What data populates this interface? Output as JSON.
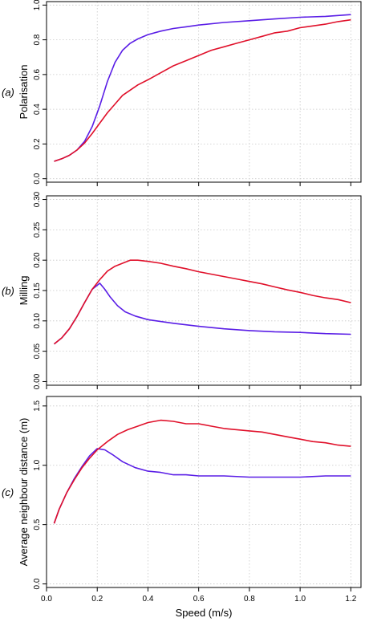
{
  "colors": {
    "red": "#e0102a",
    "blue": "#5a1ee6",
    "grid": "#c8c8c8",
    "axis": "#000000"
  },
  "xaxis": {
    "label": "Speed (m/s)",
    "ticks": [
      "0.0",
      "0.2",
      "0.4",
      "0.6",
      "0.8",
      "1.0",
      "1.2"
    ]
  },
  "chart_data": [
    {
      "type": "line",
      "panel_label": "(a)",
      "ylabel": "Polarisation",
      "xlim": [
        0,
        1.24
      ],
      "ylim": [
        -0.02,
        1.02
      ],
      "x_ticks": [
        0,
        0.2,
        0.4,
        0.6,
        0.8,
        1.0,
        1.2
      ],
      "y_ticks": [
        0.0,
        0.2,
        0.4,
        0.6,
        0.8,
        1.0
      ],
      "y_tick_labels": [
        "0.0",
        "0.2",
        "0.4",
        "0.6",
        "0.8",
        "1.0"
      ],
      "grid": true,
      "series": [
        {
          "color": "#5a1ee6",
          "x": [
            0.03,
            0.06,
            0.09,
            0.12,
            0.15,
            0.18,
            0.21,
            0.24,
            0.27,
            0.3,
            0.33,
            0.36,
            0.4,
            0.45,
            0.5,
            0.55,
            0.6,
            0.7,
            0.8,
            0.9,
            1.0,
            1.1,
            1.2
          ],
          "y": [
            0.1,
            0.115,
            0.135,
            0.165,
            0.215,
            0.3,
            0.42,
            0.56,
            0.67,
            0.74,
            0.78,
            0.805,
            0.83,
            0.85,
            0.865,
            0.875,
            0.885,
            0.9,
            0.91,
            0.92,
            0.93,
            0.935,
            0.945
          ]
        },
        {
          "color": "#e0102a",
          "x": [
            0.03,
            0.06,
            0.09,
            0.12,
            0.15,
            0.18,
            0.21,
            0.24,
            0.27,
            0.3,
            0.33,
            0.36,
            0.4,
            0.45,
            0.5,
            0.55,
            0.6,
            0.65,
            0.7,
            0.75,
            0.8,
            0.85,
            0.9,
            0.95,
            1.0,
            1.05,
            1.1,
            1.15,
            1.2
          ],
          "y": [
            0.1,
            0.115,
            0.135,
            0.165,
            0.205,
            0.26,
            0.32,
            0.38,
            0.43,
            0.48,
            0.51,
            0.54,
            0.57,
            0.61,
            0.65,
            0.68,
            0.71,
            0.74,
            0.76,
            0.78,
            0.8,
            0.82,
            0.84,
            0.85,
            0.87,
            0.88,
            0.89,
            0.905,
            0.915
          ]
        }
      ]
    },
    {
      "type": "line",
      "panel_label": "(b)",
      "ylabel": "Milling",
      "xlim": [
        0,
        1.24
      ],
      "ylim": [
        -0.006,
        0.306
      ],
      "x_ticks": [
        0,
        0.2,
        0.4,
        0.6,
        0.8,
        1.0,
        1.2
      ],
      "y_ticks": [
        0.0,
        0.05,
        0.1,
        0.15,
        0.2,
        0.25,
        0.3
      ],
      "y_tick_labels": [
        "0.00",
        "0.05",
        "0.10",
        "0.15",
        "0.20",
        "0.25",
        "0.30"
      ],
      "grid": true,
      "series": [
        {
          "color": "#5a1ee6",
          "x": [
            0.03,
            0.06,
            0.09,
            0.12,
            0.15,
            0.18,
            0.21,
            0.23,
            0.25,
            0.28,
            0.31,
            0.35,
            0.4,
            0.45,
            0.5,
            0.6,
            0.7,
            0.8,
            0.9,
            1.0,
            1.1,
            1.2
          ],
          "y": [
            0.062,
            0.072,
            0.087,
            0.107,
            0.13,
            0.152,
            0.162,
            0.152,
            0.14,
            0.125,
            0.115,
            0.108,
            0.102,
            0.099,
            0.096,
            0.091,
            0.087,
            0.084,
            0.082,
            0.081,
            0.079,
            0.078
          ]
        },
        {
          "color": "#e0102a",
          "x": [
            0.03,
            0.06,
            0.09,
            0.12,
            0.15,
            0.18,
            0.21,
            0.24,
            0.27,
            0.3,
            0.33,
            0.36,
            0.4,
            0.45,
            0.5,
            0.55,
            0.6,
            0.65,
            0.7,
            0.75,
            0.8,
            0.85,
            0.9,
            0.95,
            1.0,
            1.05,
            1.1,
            1.15,
            1.2
          ],
          "y": [
            0.062,
            0.072,
            0.087,
            0.107,
            0.13,
            0.152,
            0.168,
            0.182,
            0.19,
            0.195,
            0.2,
            0.2,
            0.198,
            0.195,
            0.19,
            0.186,
            0.181,
            0.177,
            0.173,
            0.169,
            0.165,
            0.161,
            0.156,
            0.151,
            0.147,
            0.142,
            0.138,
            0.135,
            0.13
          ]
        }
      ]
    },
    {
      "type": "line",
      "panel_label": "(c)",
      "ylabel": "Average neighbour distance (m)",
      "xlim": [
        0,
        1.24
      ],
      "ylim": [
        -0.03,
        1.58
      ],
      "x_ticks": [
        0,
        0.2,
        0.4,
        0.6,
        0.8,
        1.0,
        1.2
      ],
      "y_ticks": [
        0.0,
        0.5,
        1.0,
        1.5
      ],
      "y_tick_labels": [
        "0.0",
        "0.5",
        "1.0",
        "1.5"
      ],
      "grid": true,
      "series": [
        {
          "color": "#5a1ee6",
          "x": [
            0.03,
            0.05,
            0.08,
            0.11,
            0.14,
            0.17,
            0.2,
            0.23,
            0.26,
            0.3,
            0.35,
            0.4,
            0.45,
            0.5,
            0.55,
            0.6,
            0.7,
            0.8,
            0.9,
            1.0,
            1.1,
            1.2
          ],
          "y": [
            0.51,
            0.63,
            0.77,
            0.89,
            0.99,
            1.08,
            1.14,
            1.13,
            1.09,
            1.03,
            0.98,
            0.95,
            0.94,
            0.92,
            0.92,
            0.91,
            0.91,
            0.9,
            0.9,
            0.9,
            0.91,
            0.91
          ]
        },
        {
          "color": "#e0102a",
          "x": [
            0.03,
            0.05,
            0.08,
            0.11,
            0.14,
            0.17,
            0.2,
            0.24,
            0.28,
            0.32,
            0.36,
            0.4,
            0.45,
            0.5,
            0.55,
            0.6,
            0.65,
            0.7,
            0.75,
            0.8,
            0.85,
            0.9,
            0.95,
            1.0,
            1.05,
            1.1,
            1.15,
            1.2
          ],
          "y": [
            0.51,
            0.63,
            0.77,
            0.88,
            0.98,
            1.06,
            1.13,
            1.2,
            1.26,
            1.3,
            1.33,
            1.36,
            1.38,
            1.37,
            1.35,
            1.35,
            1.33,
            1.31,
            1.3,
            1.29,
            1.28,
            1.26,
            1.24,
            1.22,
            1.2,
            1.19,
            1.17,
            1.16
          ]
        }
      ]
    }
  ]
}
